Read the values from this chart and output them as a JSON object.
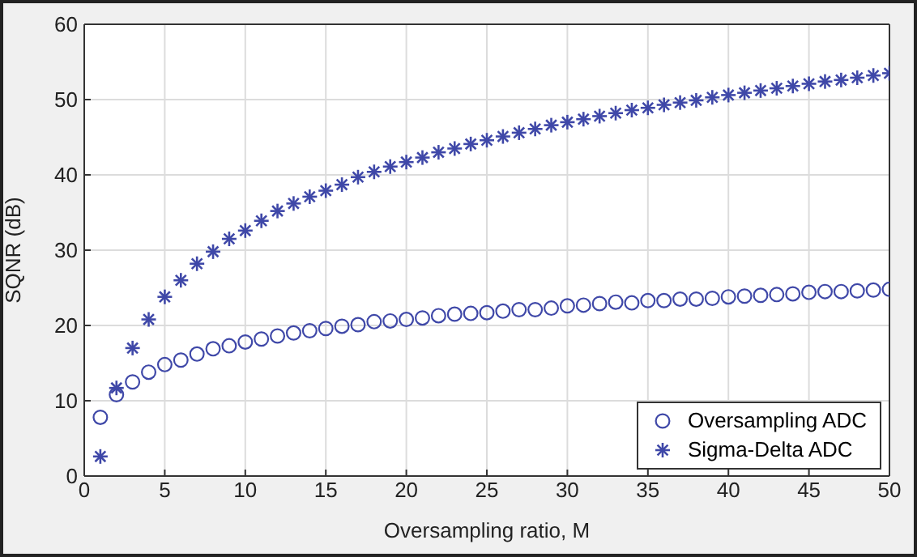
{
  "chart_data": {
    "type": "scatter",
    "xlabel": "Oversampling ratio, M",
    "ylabel": "SQNR (dB)",
    "x": [
      1,
      2,
      3,
      4,
      5,
      6,
      7,
      8,
      9,
      10,
      11,
      12,
      13,
      14,
      15,
      16,
      17,
      18,
      19,
      20,
      21,
      22,
      23,
      24,
      25,
      26,
      27,
      28,
      29,
      30,
      31,
      32,
      33,
      34,
      35,
      36,
      37,
      38,
      39,
      40,
      41,
      42,
      43,
      44,
      45,
      46,
      47,
      48,
      49,
      50
    ],
    "series": [
      {
        "name": "Oversampling ADC",
        "color": "#3f48a8",
        "marker": "circle",
        "values": [
          7.8,
          10.8,
          12.5,
          13.8,
          14.8,
          15.4,
          16.2,
          16.9,
          17.3,
          17.8,
          18.2,
          18.6,
          19.0,
          19.3,
          19.6,
          19.9,
          20.1,
          20.5,
          20.6,
          20.8,
          21.0,
          21.3,
          21.5,
          21.6,
          21.7,
          21.9,
          22.1,
          22.1,
          22.3,
          22.6,
          22.7,
          22.9,
          23.1,
          23.0,
          23.3,
          23.3,
          23.5,
          23.5,
          23.6,
          23.8,
          23.9,
          24.0,
          24.1,
          24.2,
          24.4,
          24.5,
          24.5,
          24.6,
          24.7,
          24.8
        ]
      },
      {
        "name": "Sigma-Delta ADC",
        "color": "#3f48a8",
        "marker": "cross",
        "values": [
          2.6,
          11.7,
          17.0,
          20.8,
          23.8,
          26.0,
          28.2,
          29.8,
          31.5,
          32.6,
          33.9,
          35.2,
          36.2,
          37.1,
          37.9,
          38.7,
          39.7,
          40.4,
          41.1,
          41.7,
          42.3,
          43.0,
          43.5,
          44.1,
          44.6,
          45.1,
          45.6,
          46.1,
          46.6,
          47.0,
          47.4,
          47.8,
          48.2,
          48.6,
          48.9,
          49.3,
          49.6,
          49.9,
          50.3,
          50.6,
          50.9,
          51.2,
          51.5,
          51.8,
          52.1,
          52.4,
          52.6,
          52.9,
          53.2,
          53.5
        ]
      }
    ],
    "xlim": [
      0,
      50
    ],
    "xticks": [
      0,
      5,
      10,
      15,
      20,
      25,
      30,
      35,
      40,
      45,
      50
    ],
    "ylim": [
      0,
      60
    ],
    "yticks": [
      0,
      10,
      20,
      30,
      40,
      50,
      60
    ],
    "grid": true,
    "legend": "bottom right"
  }
}
